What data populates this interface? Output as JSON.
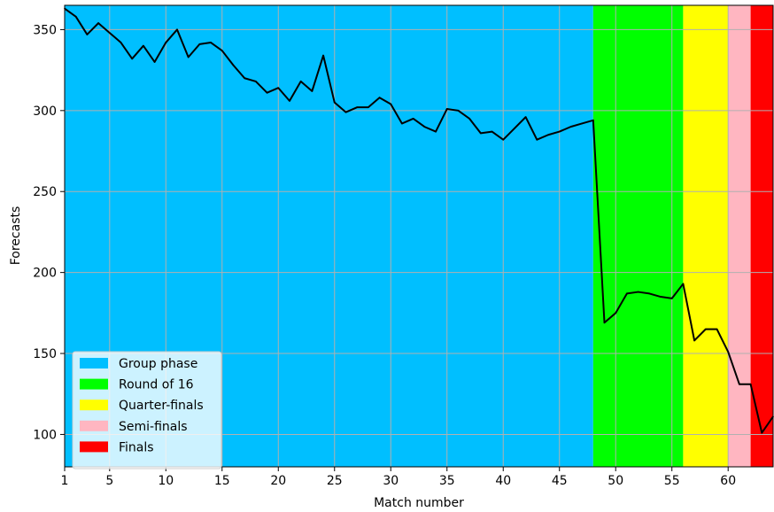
{
  "chart_data": {
    "type": "line",
    "title": "",
    "xlabel": "Match number",
    "ylabel": "Forecasts",
    "xlim": [
      1,
      64
    ],
    "ylim": [
      80,
      365
    ],
    "grid": true,
    "x_ticks": [
      1,
      5,
      10,
      15,
      20,
      25,
      30,
      35,
      40,
      45,
      50,
      55,
      60
    ],
    "y_ticks": [
      100,
      150,
      200,
      250,
      300,
      350
    ],
    "x_tick_labels": [
      "1",
      "5",
      "10",
      "15",
      "20",
      "25",
      "30",
      "35",
      "40",
      "45",
      "50",
      "55",
      "60"
    ],
    "y_tick_labels": [
      "100",
      "150",
      "200",
      "250",
      "300",
      "350"
    ],
    "phases": [
      {
        "name": "Group phase",
        "color": "#00bfff",
        "start": 1,
        "end": 48
      },
      {
        "name": "Round of 16",
        "color": "#00ff00",
        "start": 48,
        "end": 56
      },
      {
        "name": "Quarter-finals",
        "color": "#ffff00",
        "start": 56,
        "end": 60
      },
      {
        "name": "Semi-finals",
        "color": "#ffb6c1",
        "start": 60,
        "end": 62
      },
      {
        "name": "Finals",
        "color": "#ff0000",
        "start": 62,
        "end": 64
      }
    ],
    "legend_position": "lower-left",
    "series": [
      {
        "color": "#000000",
        "x": [
          1,
          2,
          3,
          4,
          5,
          6,
          7,
          8,
          9,
          10,
          11,
          12,
          13,
          14,
          15,
          16,
          17,
          18,
          19,
          20,
          21,
          22,
          23,
          24,
          25,
          26,
          27,
          28,
          29,
          30,
          31,
          32,
          33,
          34,
          35,
          36,
          37,
          38,
          39,
          40,
          41,
          42,
          43,
          44,
          45,
          46,
          47,
          48,
          49,
          50,
          51,
          52,
          53,
          54,
          55,
          56,
          57,
          58,
          59,
          60,
          61,
          62,
          63,
          64
        ],
        "values": [
          363,
          358,
          347,
          354,
          348,
          342,
          332,
          340,
          330,
          342,
          350,
          333,
          341,
          342,
          337,
          328,
          320,
          318,
          311,
          314,
          306,
          318,
          312,
          334,
          305,
          299,
          302,
          302,
          308,
          304,
          292,
          295,
          290,
          287,
          301,
          300,
          295,
          286,
          287,
          282,
          289,
          296,
          282,
          285,
          287,
          290,
          292,
          294,
          169,
          175,
          187,
          188,
          187,
          185,
          184,
          193,
          158,
          165,
          165,
          151,
          131,
          131,
          101,
          111
        ]
      }
    ]
  }
}
